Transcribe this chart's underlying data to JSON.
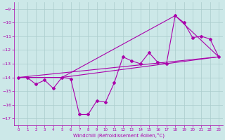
{
  "xlabel": "Windchill (Refroidissement éolien,°C)",
  "bg_color": "#cce8e8",
  "grid_color": "#aacccc",
  "line_color": "#aa00aa",
  "ylim": [
    -17.5,
    -8.5
  ],
  "xlim": [
    -0.5,
    23.5
  ],
  "yticks": [
    -17,
    -16,
    -15,
    -14,
    -13,
    -12,
    -11,
    -10,
    -9
  ],
  "xticks": [
    0,
    1,
    2,
    3,
    4,
    5,
    6,
    7,
    8,
    9,
    10,
    11,
    12,
    13,
    14,
    15,
    16,
    17,
    18,
    19,
    20,
    21,
    22,
    23
  ],
  "series1_x": [
    0,
    1,
    2,
    3,
    4,
    5,
    6,
    7,
    8,
    9,
    10,
    11,
    12,
    13,
    14,
    15,
    16,
    17,
    18,
    19,
    20,
    21,
    22,
    23
  ],
  "series1_y": [
    -14.0,
    -14.0,
    -14.5,
    -14.2,
    -14.8,
    -14.0,
    -14.1,
    -16.7,
    -16.7,
    -15.7,
    -15.8,
    -14.4,
    -12.5,
    -12.8,
    -13.0,
    -12.2,
    -12.9,
    -13.0,
    -9.5,
    -10.0,
    -11.1,
    -11.0,
    -11.2,
    -12.5
  ],
  "series2_x": [
    0,
    5,
    23
  ],
  "series2_y": [
    -14.0,
    -14.0,
    -12.5
  ],
  "series3_x": [
    0,
    5,
    18,
    23
  ],
  "series3_y": [
    -14.0,
    -14.0,
    -9.5,
    -12.5
  ],
  "series4_x": [
    0,
    23
  ],
  "series4_y": [
    -14.0,
    -12.5
  ]
}
